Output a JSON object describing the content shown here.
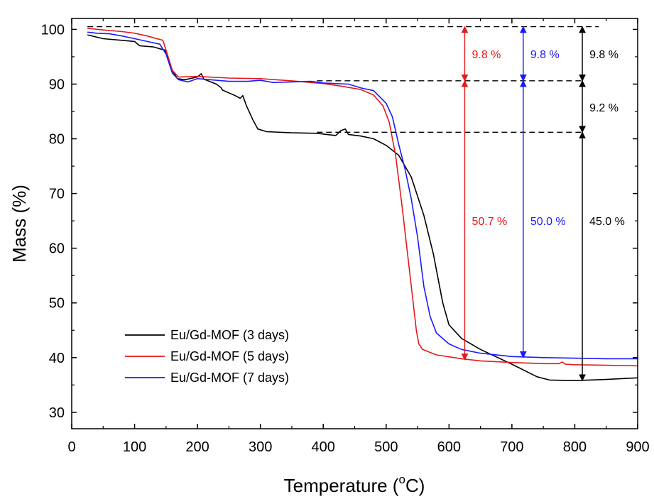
{
  "chart_data": {
    "type": "line",
    "title": "",
    "xlabel": "Temperature (",
    "xlabel_sup": "o",
    "xlabel_end": "C)",
    "ylabel": "Mass (%)",
    "xlim": [
      0,
      900
    ],
    "ylim": [
      27,
      102
    ],
    "x_ticks": [
      0,
      100,
      200,
      300,
      400,
      500,
      600,
      700,
      800,
      900
    ],
    "y_ticks": [
      30,
      40,
      50,
      60,
      70,
      80,
      90,
      100
    ],
    "grid": false,
    "legend_position": "bottom-left",
    "series": [
      {
        "name": "Eu/Gd-MOF (3 days)",
        "color": "#000000",
        "points": [
          [
            25,
            99.0
          ],
          [
            50,
            98.3
          ],
          [
            80,
            98.0
          ],
          [
            100,
            97.8
          ],
          [
            108,
            97.0
          ],
          [
            130,
            96.8
          ],
          [
            148,
            96.2
          ],
          [
            160,
            92.5
          ],
          [
            168,
            91.0
          ],
          [
            180,
            90.8
          ],
          [
            200,
            91.3
          ],
          [
            206,
            91.9
          ],
          [
            210,
            90.9
          ],
          [
            230,
            90.0
          ],
          [
            237,
            89.4
          ],
          [
            240,
            88.9
          ],
          [
            260,
            87.9
          ],
          [
            268,
            87.4
          ],
          [
            272,
            87.9
          ],
          [
            278,
            86.0
          ],
          [
            288,
            83.5
          ],
          [
            296,
            81.8
          ],
          [
            310,
            81.3
          ],
          [
            350,
            81.1
          ],
          [
            390,
            81.0
          ],
          [
            420,
            80.6
          ],
          [
            428,
            81.5
          ],
          [
            435,
            81.8
          ],
          [
            440,
            80.8
          ],
          [
            460,
            80.5
          ],
          [
            480,
            80.0
          ],
          [
            500,
            78.8
          ],
          [
            520,
            77.0
          ],
          [
            540,
            73.0
          ],
          [
            560,
            66.0
          ],
          [
            575,
            59.0
          ],
          [
            590,
            50.0
          ],
          [
            600,
            46.0
          ],
          [
            620,
            43.5
          ],
          [
            650,
            41.5
          ],
          [
            700,
            38.8
          ],
          [
            740,
            36.5
          ],
          [
            760,
            35.9
          ],
          [
            800,
            35.8
          ],
          [
            850,
            36.0
          ],
          [
            900,
            36.3
          ]
        ]
      },
      {
        "name": "Eu/Gd-MOF (5 days)",
        "color": "#e31a1c",
        "points": [
          [
            25,
            100.2
          ],
          [
            50,
            99.9
          ],
          [
            80,
            99.6
          ],
          [
            100,
            99.3
          ],
          [
            120,
            98.8
          ],
          [
            145,
            98.0
          ],
          [
            152,
            95.5
          ],
          [
            160,
            92.5
          ],
          [
            170,
            91.3
          ],
          [
            200,
            91.4
          ],
          [
            250,
            91.1
          ],
          [
            300,
            91.0
          ],
          [
            350,
            90.6
          ],
          [
            400,
            90.1
          ],
          [
            430,
            89.6
          ],
          [
            460,
            89.0
          ],
          [
            480,
            88.0
          ],
          [
            495,
            86.0
          ],
          [
            505,
            83.0
          ],
          [
            515,
            77.0
          ],
          [
            525,
            68.0
          ],
          [
            535,
            58.0
          ],
          [
            543,
            50.0
          ],
          [
            548,
            45.0
          ],
          [
            552,
            42.5
          ],
          [
            558,
            41.5
          ],
          [
            580,
            40.5
          ],
          [
            620,
            39.8
          ],
          [
            650,
            39.4
          ],
          [
            700,
            39.1
          ],
          [
            750,
            38.9
          ],
          [
            775,
            38.9
          ],
          [
            780,
            39.2
          ],
          [
            785,
            38.8
          ],
          [
            800,
            38.7
          ],
          [
            850,
            38.6
          ],
          [
            900,
            38.5
          ]
        ]
      },
      {
        "name": "Eu/Gd-MOF (7 days)",
        "color": "#1a1aff",
        "points": [
          [
            25,
            99.5
          ],
          [
            40,
            99.3
          ],
          [
            60,
            99.2
          ],
          [
            80,
            98.8
          ],
          [
            100,
            98.3
          ],
          [
            120,
            97.8
          ],
          [
            140,
            97.3
          ],
          [
            150,
            95.5
          ],
          [
            160,
            92.0
          ],
          [
            170,
            90.8
          ],
          [
            185,
            90.4
          ],
          [
            200,
            91.0
          ],
          [
            220,
            90.8
          ],
          [
            250,
            90.5
          ],
          [
            280,
            90.5
          ],
          [
            300,
            90.7
          ],
          [
            320,
            90.3
          ],
          [
            350,
            90.4
          ],
          [
            380,
            90.5
          ],
          [
            400,
            90.2
          ],
          [
            440,
            90.0
          ],
          [
            460,
            89.3
          ],
          [
            480,
            88.8
          ],
          [
            500,
            86.5
          ],
          [
            510,
            84.0
          ],
          [
            520,
            79.0
          ],
          [
            530,
            74.5
          ],
          [
            540,
            69.0
          ],
          [
            550,
            62.0
          ],
          [
            560,
            53.0
          ],
          [
            570,
            47.5
          ],
          [
            580,
            44.5
          ],
          [
            600,
            42.5
          ],
          [
            620,
            41.5
          ],
          [
            650,
            40.8
          ],
          [
            700,
            40.2
          ],
          [
            750,
            40.0
          ],
          [
            800,
            39.9
          ],
          [
            850,
            39.8
          ],
          [
            900,
            39.8
          ]
        ]
      }
    ],
    "reference_lines": [
      {
        "y": 100.5,
        "x_start": 25,
        "x_end": 838
      },
      {
        "y": 90.6,
        "x_start": 390,
        "x_end": 815
      },
      {
        "y": 81.2,
        "x_start": 390,
        "x_end": 815
      }
    ],
    "annotations": [
      {
        "x": 625,
        "y_top": 100.5,
        "y_bottom": 90.6,
        "label": "9.8 %",
        "color": "#e31a1c",
        "label_y": 95.5
      },
      {
        "x": 625,
        "y_top": 90.6,
        "y_bottom": 39.6,
        "label": "50.7 %",
        "color": "#e31a1c",
        "label_y": 65.0
      },
      {
        "x": 718,
        "y_top": 100.5,
        "y_bottom": 90.6,
        "label": "9.8 %",
        "color": "#1a1aff",
        "label_y": 95.5
      },
      {
        "x": 718,
        "y_top": 90.6,
        "y_bottom": 40.0,
        "label": "50.0 %",
        "color": "#1a1aff",
        "label_y": 65.0
      },
      {
        "x": 812,
        "y_top": 100.5,
        "y_bottom": 90.6,
        "label": "9.8 %",
        "color": "#000000",
        "label_y": 95.5
      },
      {
        "x": 812,
        "y_top": 90.6,
        "y_bottom": 81.2,
        "label": "9.2 %",
        "color": "#000000",
        "label_y": 85.8
      },
      {
        "x": 812,
        "y_top": 81.2,
        "y_bottom": 35.8,
        "label": "45.0 %",
        "color": "#000000",
        "label_y": 65.0
      }
    ]
  }
}
